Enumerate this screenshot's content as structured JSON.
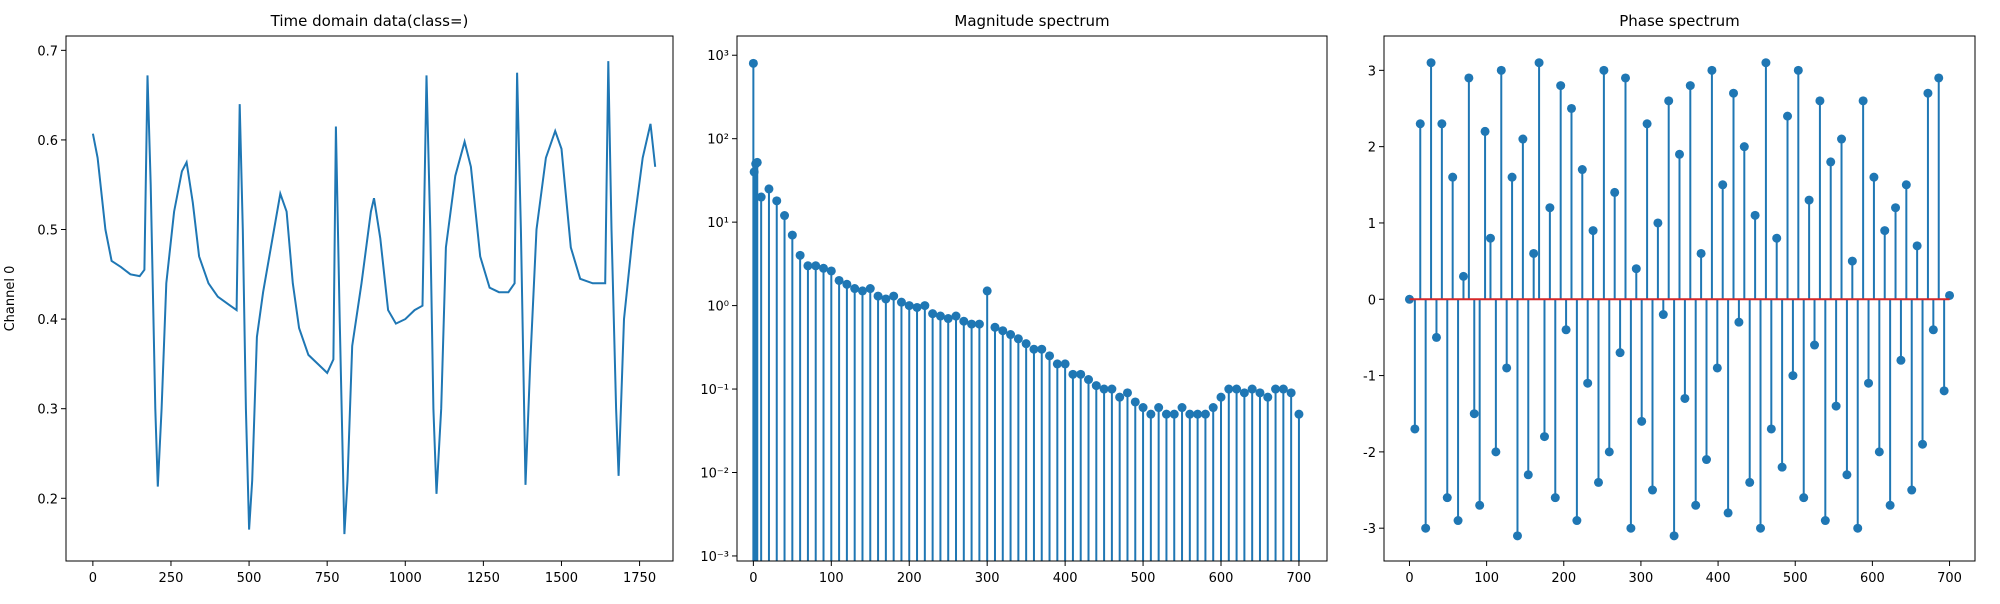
{
  "chart_data": [
    {
      "type": "line",
      "title": "Time domain data(class=)",
      "y_label": "Channel 0",
      "color": "#1f77b4",
      "x": [
        0,
        15,
        40,
        60,
        90,
        120,
        150,
        165,
        175,
        185,
        200,
        208,
        220,
        235,
        260,
        285,
        300,
        320,
        340,
        370,
        400,
        440,
        460,
        470,
        480,
        490,
        500,
        510,
        525,
        545,
        570,
        600,
        620,
        640,
        660,
        690,
        720,
        750,
        770,
        778,
        790,
        805,
        815,
        830,
        860,
        890,
        900,
        920,
        945,
        970,
        1000,
        1030,
        1055,
        1068,
        1080,
        1090,
        1100,
        1115,
        1130,
        1160,
        1190,
        1210,
        1240,
        1270,
        1300,
        1330,
        1350,
        1358,
        1370,
        1385,
        1400,
        1420,
        1450,
        1480,
        1500,
        1530,
        1560,
        1600,
        1640,
        1650,
        1660,
        1675,
        1683,
        1700,
        1730,
        1760,
        1785,
        1800
      ],
      "values": [
        0.607,
        0.58,
        0.5,
        0.465,
        0.458,
        0.45,
        0.448,
        0.455,
        0.672,
        0.55,
        0.3,
        0.213,
        0.3,
        0.44,
        0.52,
        0.565,
        0.575,
        0.53,
        0.47,
        0.44,
        0.425,
        0.415,
        0.41,
        0.64,
        0.5,
        0.3,
        0.165,
        0.22,
        0.38,
        0.43,
        0.48,
        0.54,
        0.52,
        0.44,
        0.39,
        0.36,
        0.35,
        0.34,
        0.355,
        0.615,
        0.4,
        0.16,
        0.22,
        0.37,
        0.44,
        0.52,
        0.535,
        0.49,
        0.41,
        0.395,
        0.4,
        0.41,
        0.415,
        0.672,
        0.5,
        0.3,
        0.205,
        0.3,
        0.48,
        0.56,
        0.598,
        0.57,
        0.47,
        0.435,
        0.43,
        0.43,
        0.44,
        0.675,
        0.5,
        0.215,
        0.35,
        0.5,
        0.58,
        0.61,
        0.59,
        0.48,
        0.445,
        0.44,
        0.44,
        0.688,
        0.5,
        0.3,
        0.225,
        0.4,
        0.5,
        0.58,
        0.618,
        0.57
      ],
      "xlim": [
        -86,
        1857
      ],
      "ylim": [
        0.13,
        0.716
      ],
      "xticks": [
        0,
        250,
        500,
        750,
        1000,
        1250,
        1500,
        1750
      ],
      "yticks": [
        0.2,
        0.3,
        0.4,
        0.5,
        0.6,
        0.7
      ]
    },
    {
      "type": "stem",
      "title": "Magnitude spectrum",
      "color": "#1f77b4",
      "log_y": true,
      "x": [
        0,
        1,
        3,
        5,
        10,
        20,
        30,
        40,
        50,
        60,
        70,
        80,
        90,
        100,
        110,
        120,
        130,
        140,
        150,
        160,
        170,
        180,
        190,
        200,
        210,
        220,
        230,
        240,
        250,
        260,
        270,
        280,
        290,
        300,
        310,
        320,
        330,
        340,
        350,
        360,
        370,
        380,
        390,
        400,
        410,
        420,
        430,
        440,
        450,
        460,
        470,
        480,
        490,
        500,
        510,
        520,
        530,
        540,
        550,
        560,
        570,
        580,
        590,
        600,
        610,
        620,
        630,
        640,
        650,
        660,
        670,
        680,
        690,
        700
      ],
      "values": [
        800,
        40,
        50,
        52,
        20,
        25,
        18,
        12,
        7,
        4,
        3,
        3,
        2.8,
        2.6,
        2,
        1.8,
        1.6,
        1.5,
        1.6,
        1.3,
        1.2,
        1.3,
        1.1,
        1.0,
        0.95,
        1.0,
        0.8,
        0.75,
        0.7,
        0.75,
        0.65,
        0.6,
        0.6,
        1.5,
        0.55,
        0.5,
        0.45,
        0.4,
        0.35,
        0.3,
        0.3,
        0.25,
        0.2,
        0.2,
        0.15,
        0.15,
        0.13,
        0.11,
        0.1,
        0.1,
        0.08,
        0.09,
        0.07,
        0.06,
        0.05,
        0.06,
        0.05,
        0.05,
        0.06,
        0.05,
        0.05,
        0.05,
        0.06,
        0.08,
        0.1,
        0.1,
        0.09,
        0.1,
        0.09,
        0.08,
        0.1,
        0.1,
        0.09,
        0.05
      ],
      "xlim": [
        -21,
        736
      ],
      "ylim": [
        0.00087,
        1700
      ],
      "xticks": [
        0,
        100,
        200,
        300,
        400,
        500,
        600,
        700
      ],
      "yticks": [
        {
          "value": 0.001,
          "label": "10⁻³"
        },
        {
          "value": 0.01,
          "label": "10⁻²"
        },
        {
          "value": 0.1,
          "label": "10⁻¹"
        },
        {
          "value": 1,
          "label": "10⁰"
        },
        {
          "value": 10,
          "label": "10¹"
        },
        {
          "value": 100,
          "label": "10²"
        },
        {
          "value": 1000,
          "label": "10³"
        }
      ]
    },
    {
      "type": "stem",
      "title": "Phase spectrum",
      "color": "#1f77b4",
      "baseline_color": "#d62728",
      "x": [
        0,
        7,
        14,
        21,
        28,
        35,
        42,
        49,
        56,
        63,
        70,
        77,
        84,
        91,
        98,
        105,
        112,
        119,
        126,
        133,
        140,
        147,
        154,
        161,
        168,
        175,
        182,
        189,
        196,
        203,
        210,
        217,
        224,
        231,
        238,
        245,
        252,
        259,
        266,
        273,
        280,
        287,
        294,
        301,
        308,
        315,
        322,
        329,
        336,
        343,
        350,
        357,
        364,
        371,
        378,
        385,
        392,
        399,
        406,
        413,
        420,
        427,
        434,
        441,
        448,
        455,
        462,
        469,
        476,
        483,
        490,
        497,
        504,
        511,
        518,
        525,
        532,
        539,
        546,
        553,
        560,
        567,
        574,
        581,
        588,
        595,
        602,
        609,
        616,
        623,
        630,
        637,
        644,
        651,
        658,
        665,
        672,
        679,
        686,
        693,
        700
      ],
      "values": [
        0,
        -1.7,
        2.3,
        -3.0,
        3.1,
        -0.5,
        2.3,
        -2.6,
        1.6,
        -2.9,
        0.3,
        2.9,
        -1.5,
        -2.7,
        2.2,
        0.8,
        -2.0,
        3.0,
        -0.9,
        1.6,
        -3.1,
        2.1,
        -2.3,
        0.6,
        3.1,
        -1.8,
        1.2,
        -2.6,
        2.8,
        -0.4,
        2.5,
        -2.9,
        1.7,
        -1.1,
        0.9,
        -2.4,
        3.0,
        -2.0,
        1.4,
        -0.7,
        2.9,
        -3.0,
        0.4,
        -1.6,
        2.3,
        -2.5,
        1.0,
        -0.2,
        2.6,
        -3.1,
        1.9,
        -1.3,
        2.8,
        -2.7,
        0.6,
        -2.1,
        3.0,
        -0.9,
        1.5,
        -2.8,
        2.7,
        -0.3,
        2.0,
        -2.4,
        1.1,
        -3.0,
        3.1,
        -1.7,
        0.8,
        -2.2,
        2.4,
        -1.0,
        3.0,
        -2.6,
        1.3,
        -0.6,
        2.6,
        -2.9,
        1.8,
        -1.4,
        2.1,
        -2.3,
        0.5,
        -3.0,
        2.6,
        -1.1,
        1.6,
        -2.0,
        0.9,
        -2.7,
        1.2,
        -0.8,
        1.5,
        -2.5,
        0.7,
        -1.9,
        2.7,
        -0.4,
        2.9,
        -1.2,
        0.05
      ],
      "xlim": [
        -33,
        733
      ],
      "ylim": [
        -3.43,
        3.45
      ],
      "xticks": [
        0,
        100,
        200,
        300,
        400,
        500,
        600,
        700
      ],
      "yticks": [
        -3,
        -2,
        -1,
        0,
        1,
        2,
        3
      ]
    }
  ]
}
